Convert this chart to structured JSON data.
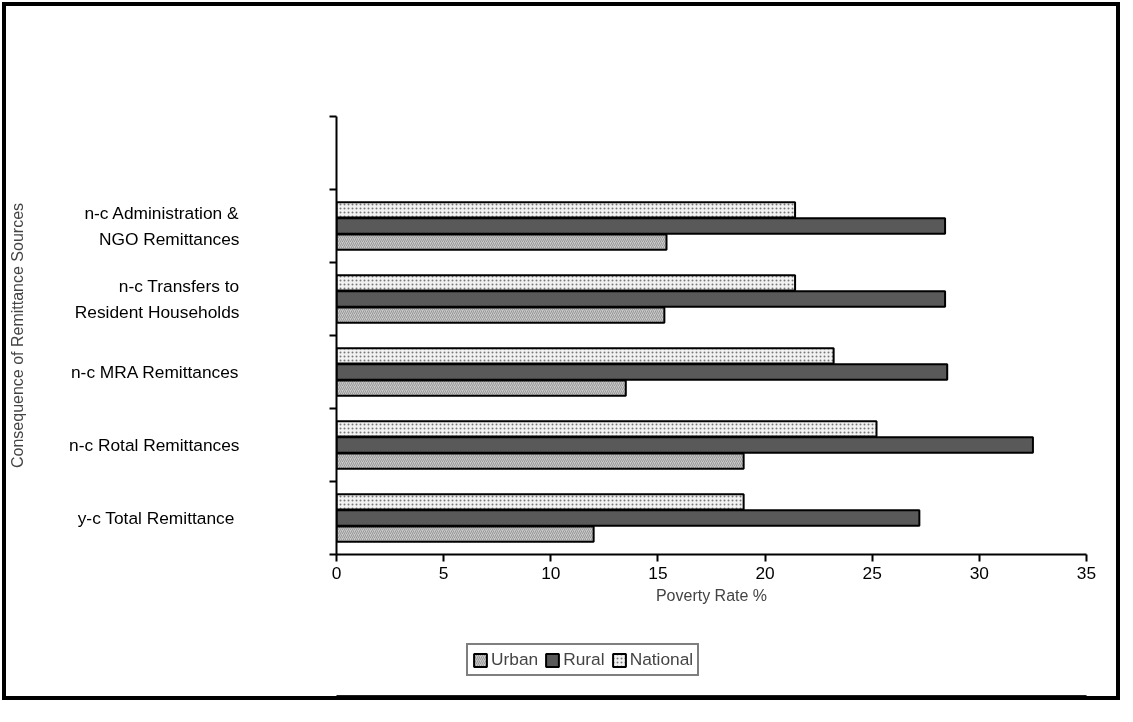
{
  "chart_data": {
    "type": "bar",
    "orientation": "horizontal",
    "xlabel": "Poverty Rate %",
    "ylabel": "Consequence of Remittance Sources",
    "categories": [
      null,
      "n-c Administration &\nNGO Remittances",
      "n-c Transfers to\nResident Households",
      "n-c MRA Remittances",
      "n-c Rotal Remittances",
      "y-c  Total Remittance"
    ],
    "series": [
      {
        "name": "Urban",
        "color": "#c8c8c8",
        "values": [
          null,
          15.4,
          15.3,
          13.5,
          19.0,
          12.0
        ]
      },
      {
        "name": "Rural",
        "color": "#595959",
        "values": [
          null,
          28.4,
          28.4,
          28.5,
          32.5,
          27.2
        ]
      },
      {
        "name": "National",
        "color": "#f2f2f2",
        "values": [
          null,
          21.4,
          21.4,
          23.2,
          25.2,
          19.0
        ]
      }
    ],
    "xlim": [
      0,
      35
    ],
    "xticks": [
      0,
      5,
      10,
      15,
      20,
      25,
      30,
      35
    ],
    "grid": false,
    "legend": "bottom"
  }
}
